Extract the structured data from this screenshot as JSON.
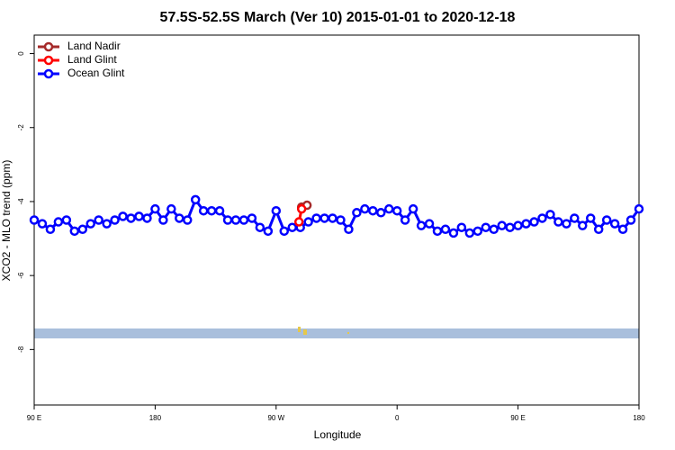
{
  "chart_data": {
    "type": "line",
    "title": "57.5S-52.5S March (Ver 10)   2015-01-01 to 2020-12-18",
    "x_label": "Longitude",
    "y_label": "XCO2 - MLO trend (ppm)",
    "xlim": [
      90,
      540
    ],
    "xticks": [
      {
        "value": 90,
        "label": "90 E"
      },
      180,
      {
        "value": 270,
        "label": "90 W"
      },
      {
        "value": 360,
        "label": "0"
      },
      {
        "value": 450,
        "label": "90 E"
      },
      {
        "value": 540,
        "label": "180"
      }
    ],
    "ylim": [
      -9.5,
      0.5
    ],
    "yticks": [
      0,
      -2,
      -4,
      -6,
      -8
    ],
    "legend": "top-left",
    "series": [
      {
        "name": "Land Nadir",
        "color": "#a52a2a",
        "x": [
          289,
          293
        ],
        "values": [
          -4.15,
          -4.1
        ]
      },
      {
        "name": "Land Glint",
        "color": "#ff0000",
        "x": [
          287,
          289
        ],
        "values": [
          -4.55,
          -4.2
        ]
      },
      {
        "name": "Ocean Glint",
        "color": "#0000ff",
        "x": [
          90,
          96,
          102,
          108,
          114,
          120,
          126,
          132,
          138,
          144,
          150,
          156,
          162,
          168,
          174,
          180,
          186,
          192,
          198,
          204,
          210,
          216,
          222,
          228,
          234,
          240,
          246,
          252,
          258,
          264,
          270,
          276,
          282,
          288,
          294,
          300,
          306,
          312,
          318,
          324,
          330,
          336,
          342,
          348,
          354,
          360,
          366,
          372,
          378,
          384,
          390,
          396,
          402,
          408,
          414,
          420,
          426,
          432,
          438,
          444,
          450,
          456,
          462,
          468,
          474,
          480,
          486,
          492,
          498,
          504,
          510,
          516,
          522,
          528,
          534,
          540
        ],
        "values": [
          -4.5,
          -4.6,
          -4.75,
          -4.55,
          -4.5,
          -4.8,
          -4.75,
          -4.6,
          -4.5,
          -4.6,
          -4.5,
          -4.4,
          -4.45,
          -4.4,
          -4.45,
          -4.2,
          -4.5,
          -4.2,
          -4.45,
          -4.5,
          -3.95,
          -4.25,
          -4.25,
          -4.25,
          -4.5,
          -4.5,
          -4.5,
          -4.45,
          -4.7,
          -4.8,
          -4.25,
          -4.8,
          -4.7,
          -4.7,
          -4.55,
          -4.45,
          -4.45,
          -4.45,
          -4.5,
          -4.75,
          -4.3,
          -4.2,
          -4.25,
          -4.3,
          -4.2,
          -4.25,
          -4.5,
          -4.2,
          -4.65,
          -4.6,
          -4.8,
          -4.75,
          -4.85,
          -4.7,
          -4.85,
          -4.8,
          -4.7,
          -4.75,
          -4.65,
          -4.7,
          -4.65,
          -4.6,
          -4.55,
          -4.45,
          -4.35,
          -4.55,
          -4.6,
          -4.45,
          -4.65,
          -4.45,
          -4.75,
          -4.5,
          -4.6,
          -4.75,
          -4.5,
          -4.2
        ]
      }
    ]
  }
}
